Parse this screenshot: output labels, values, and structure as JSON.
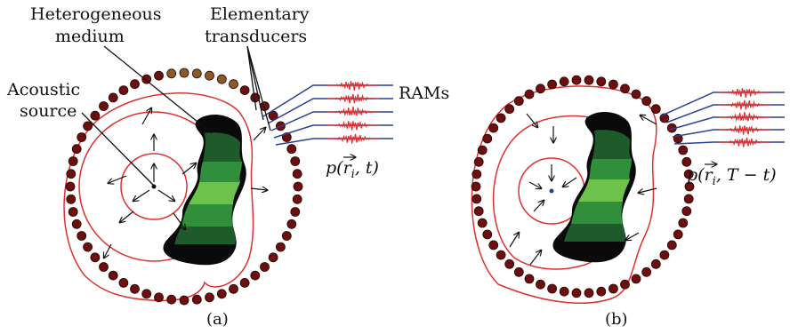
{
  "labels": {
    "heterogeneous_line1": "Heterogeneous",
    "heterogeneous_line2": "medium",
    "elementary_line1": "Elementary",
    "elementary_line2": "transducers",
    "acoustic_line1": "Acoustic",
    "acoustic_line2": "source",
    "rams": "RAMs"
  },
  "formulas": {
    "forward": {
      "prefix": "p(",
      "var": "r",
      "sub": "i",
      "suffix": ", t)"
    },
    "reverse": {
      "prefix": "p(",
      "var": "r",
      "sub": "i",
      "suffix": ", T − t)"
    }
  },
  "captions": {
    "a": "(a)",
    "b": "(b)"
  },
  "colors": {
    "transducer": "#6b0f0f",
    "transducer_active": "#8a5a28",
    "wavefront": "#e0302f",
    "wire": "#2b3f93",
    "signal": "#e0302f",
    "medium_dark": "#0a0a0a",
    "medium_green_dark": "#1f5a2a",
    "medium_green_mid": "#2f8f3a",
    "medium_green_light": "#6cc24a",
    "arrow": "#111111"
  }
}
